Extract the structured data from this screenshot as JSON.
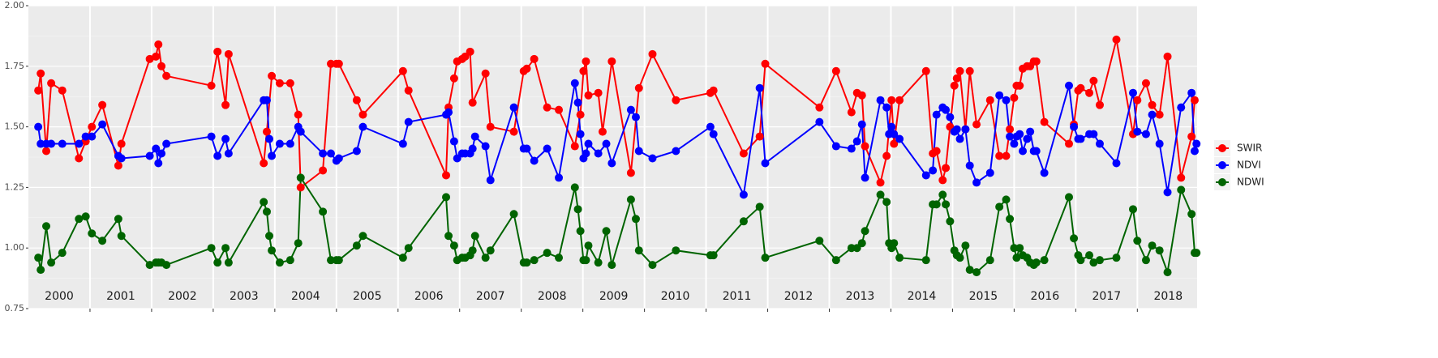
{
  "chart_data": {
    "type": "line",
    "ylim": [
      0.75,
      2.0
    ],
    "yticks": [
      0.75,
      {
        "value": 1.0,
        "label": "1.00"
      },
      1.25,
      {
        "value": 1.5,
        "label": "1.50"
      },
      1.75,
      {
        "value": 2.0,
        "label": "2.00"
      }
    ],
    "xlim": [
      2000.0,
      2018.97
    ],
    "xticks": [
      2001,
      2002,
      2003,
      2004,
      2005,
      2006,
      2007,
      2008,
      2009,
      2010,
      2011,
      2012,
      2013,
      2014,
      2015,
      2016,
      2017,
      2018
    ],
    "year_labels": [
      2000,
      2001,
      2002,
      2003,
      2004,
      2005,
      2006,
      2007,
      2008,
      2009,
      2010,
      2011,
      2012,
      2013,
      2014,
      2015,
      2016,
      2017,
      2018
    ],
    "grid": true,
    "legend": "right",
    "series": [
      {
        "name": "SWIR",
        "color": "#ff0000",
        "x": [
          2000.16,
          2000.2,
          2000.29,
          2000.37,
          2000.55,
          2000.82,
          2000.93,
          2001.03,
          2001.2,
          2001.46,
          2001.51,
          2001.97,
          2002.07,
          2002.11,
          2002.16,
          2002.24,
          2002.97,
          2003.07,
          2003.2,
          2003.25,
          2003.82,
          2003.87,
          2003.95,
          2004.08,
          2004.25,
          2004.38,
          2004.42,
          2004.78,
          2004.91,
          2005.0,
          2005.04,
          2005.33,
          2005.43,
          2006.08,
          2006.17,
          2006.78,
          2006.82,
          2006.91,
          2006.96,
          2007.04,
          2007.09,
          2007.17,
          2007.21,
          2007.42,
          2007.5,
          2007.88,
          2008.04,
          2008.09,
          2008.21,
          2008.42,
          2008.61,
          2008.87,
          2008.96,
          2009.01,
          2009.05,
          2009.09,
          2009.25,
          2009.32,
          2009.47,
          2009.78,
          2009.91,
          2010.13,
          2010.51,
          2011.07,
          2011.12,
          2011.61,
          2011.87,
          2011.96,
          2012.84,
          2013.11,
          2013.36,
          2013.45,
          2013.53,
          2013.58,
          2013.83,
          2013.93,
          2014.01,
          2014.05,
          2014.14,
          2014.57,
          2014.68,
          2014.74,
          2014.84,
          2014.89,
          2014.96,
          2015.03,
          2015.07,
          2015.12,
          2015.21,
          2015.28,
          2015.39,
          2015.61,
          2015.76,
          2015.87,
          2015.93,
          2016.0,
          2016.04,
          2016.09,
          2016.14,
          2016.21,
          2016.26,
          2016.32,
          2016.36,
          2016.49,
          2016.89,
          2016.97,
          2017.04,
          2017.08,
          2017.22,
          2017.29,
          2017.39,
          2017.66,
          2017.93,
          2018.0,
          2018.14,
          2018.24,
          2018.36,
          2018.49,
          2018.71,
          2018.88,
          2018.93
        ],
        "values": [
          1.65,
          1.72,
          1.4,
          1.68,
          1.65,
          1.37,
          1.44,
          1.5,
          1.59,
          1.34,
          1.43,
          1.78,
          1.79,
          1.84,
          1.75,
          1.71,
          1.67,
          1.81,
          1.59,
          1.8,
          1.35,
          1.48,
          1.71,
          1.68,
          1.68,
          1.55,
          1.25,
          1.32,
          1.76,
          1.76,
          1.76,
          1.61,
          1.55,
          1.73,
          1.65,
          1.3,
          1.58,
          1.7,
          1.77,
          1.78,
          1.79,
          1.81,
          1.6,
          1.72,
          1.5,
          1.48,
          1.73,
          1.74,
          1.78,
          1.58,
          1.57,
          1.42,
          1.55,
          1.73,
          1.77,
          1.63,
          1.64,
          1.48,
          1.77,
          1.31,
          1.66,
          1.8,
          1.61,
          1.64,
          1.65,
          1.39,
          1.46,
          1.76,
          1.58,
          1.73,
          1.56,
          1.64,
          1.63,
          1.42,
          1.27,
          1.38,
          1.61,
          1.43,
          1.61,
          1.73,
          1.39,
          1.4,
          1.28,
          1.33,
          1.5,
          1.67,
          1.7,
          1.73,
          1.49,
          1.73,
          1.51,
          1.61,
          1.38,
          1.38,
          1.49,
          1.62,
          1.67,
          1.67,
          1.74,
          1.75,
          1.75,
          1.77,
          1.77,
          1.52,
          1.43,
          1.51,
          1.65,
          1.66,
          1.64,
          1.69,
          1.59,
          1.86,
          1.47,
          1.61,
          1.68,
          1.59,
          1.55,
          1.79,
          1.29,
          1.46,
          1.61
        ]
      },
      {
        "name": "NDVI",
        "color": "#0000ff",
        "x": [
          2000.16,
          2000.2,
          2000.29,
          2000.37,
          2000.55,
          2000.82,
          2000.93,
          2001.03,
          2001.2,
          2001.46,
          2001.51,
          2001.97,
          2002.07,
          2002.11,
          2002.16,
          2002.24,
          2002.97,
          2003.07,
          2003.2,
          2003.25,
          2003.82,
          2003.87,
          2003.91,
          2003.95,
          2004.08,
          2004.25,
          2004.38,
          2004.42,
          2004.78,
          2004.91,
          2005.0,
          2005.04,
          2005.33,
          2005.43,
          2006.08,
          2006.17,
          2006.78,
          2006.82,
          2006.91,
          2006.96,
          2007.04,
          2007.09,
          2007.17,
          2007.21,
          2007.25,
          2007.42,
          2007.5,
          2007.88,
          2008.04,
          2008.09,
          2008.21,
          2008.42,
          2008.61,
          2008.87,
          2008.92,
          2008.96,
          2009.01,
          2009.05,
          2009.09,
          2009.25,
          2009.38,
          2009.47,
          2009.78,
          2009.86,
          2009.91,
          2010.13,
          2010.51,
          2011.07,
          2011.12,
          2011.61,
          2011.87,
          2011.96,
          2012.84,
          2013.11,
          2013.36,
          2013.45,
          2013.53,
          2013.58,
          2013.83,
          2013.93,
          2013.97,
          2014.01,
          2014.05,
          2014.14,
          2014.57,
          2014.68,
          2014.74,
          2014.84,
          2014.89,
          2014.96,
          2015.03,
          2015.07,
          2015.12,
          2015.21,
          2015.28,
          2015.39,
          2015.61,
          2015.76,
          2015.87,
          2015.93,
          2016.0,
          2016.04,
          2016.09,
          2016.14,
          2016.21,
          2016.26,
          2016.32,
          2016.36,
          2016.49,
          2016.89,
          2016.97,
          2017.04,
          2017.08,
          2017.22,
          2017.29,
          2017.39,
          2017.66,
          2017.93,
          2018.0,
          2018.14,
          2018.24,
          2018.36,
          2018.49,
          2018.71,
          2018.88,
          2018.93,
          2018.96
        ],
        "values": [
          1.5,
          1.43,
          1.43,
          1.43,
          1.43,
          1.43,
          1.46,
          1.46,
          1.51,
          1.38,
          1.37,
          1.38,
          1.41,
          1.35,
          1.39,
          1.43,
          1.46,
          1.38,
          1.45,
          1.39,
          1.61,
          1.61,
          1.45,
          1.38,
          1.43,
          1.43,
          1.5,
          1.48,
          1.39,
          1.39,
          1.36,
          1.37,
          1.4,
          1.5,
          1.43,
          1.52,
          1.55,
          1.56,
          1.44,
          1.37,
          1.39,
          1.39,
          1.39,
          1.41,
          1.46,
          1.42,
          1.28,
          1.58,
          1.41,
          1.41,
          1.36,
          1.41,
          1.29,
          1.68,
          1.6,
          1.47,
          1.37,
          1.39,
          1.43,
          1.39,
          1.43,
          1.35,
          1.57,
          1.54,
          1.4,
          1.37,
          1.4,
          1.5,
          1.47,
          1.22,
          1.66,
          1.35,
          1.52,
          1.42,
          1.41,
          1.44,
          1.51,
          1.29,
          1.61,
          1.58,
          1.47,
          1.5,
          1.47,
          1.45,
          1.3,
          1.32,
          1.55,
          1.58,
          1.57,
          1.54,
          1.48,
          1.49,
          1.45,
          1.49,
          1.34,
          1.27,
          1.31,
          1.63,
          1.61,
          1.46,
          1.43,
          1.46,
          1.47,
          1.4,
          1.45,
          1.48,
          1.4,
          1.4,
          1.31,
          1.67,
          1.5,
          1.45,
          1.45,
          1.47,
          1.47,
          1.43,
          1.35,
          1.64,
          1.48,
          1.47,
          1.55,
          1.43,
          1.23,
          1.58,
          1.64,
          1.4,
          1.43
        ]
      },
      {
        "name": "NDWI",
        "color": "#006400",
        "x": [
          2000.16,
          2000.2,
          2000.29,
          2000.37,
          2000.55,
          2000.82,
          2000.93,
          2001.03,
          2001.2,
          2001.46,
          2001.51,
          2001.97,
          2002.07,
          2002.11,
          2002.16,
          2002.24,
          2002.97,
          2003.07,
          2003.2,
          2003.25,
          2003.82,
          2003.87,
          2003.91,
          2003.95,
          2004.08,
          2004.25,
          2004.38,
          2004.42,
          2004.78,
          2004.91,
          2005.0,
          2005.04,
          2005.33,
          2005.43,
          2006.08,
          2006.17,
          2006.78,
          2006.82,
          2006.91,
          2006.96,
          2007.04,
          2007.09,
          2007.17,
          2007.21,
          2007.25,
          2007.42,
          2007.5,
          2007.88,
          2008.04,
          2008.09,
          2008.21,
          2008.42,
          2008.61,
          2008.87,
          2008.92,
          2008.96,
          2009.01,
          2009.05,
          2009.09,
          2009.25,
          2009.38,
          2009.47,
          2009.78,
          2009.86,
          2009.91,
          2010.13,
          2010.51,
          2011.07,
          2011.12,
          2011.61,
          2011.87,
          2011.96,
          2012.84,
          2013.11,
          2013.36,
          2013.45,
          2013.53,
          2013.58,
          2013.83,
          2013.93,
          2013.97,
          2014.01,
          2014.05,
          2014.14,
          2014.57,
          2014.68,
          2014.74,
          2014.84,
          2014.89,
          2014.96,
          2015.03,
          2015.07,
          2015.12,
          2015.21,
          2015.28,
          2015.39,
          2015.61,
          2015.76,
          2015.87,
          2015.93,
          2016.0,
          2016.04,
          2016.09,
          2016.14,
          2016.21,
          2016.26,
          2016.32,
          2016.36,
          2016.49,
          2016.89,
          2016.97,
          2017.04,
          2017.08,
          2017.22,
          2017.29,
          2017.39,
          2017.66,
          2017.93,
          2018.0,
          2018.14,
          2018.24,
          2018.36,
          2018.49,
          2018.71,
          2018.88,
          2018.93,
          2018.96
        ],
        "values": [
          0.96,
          0.91,
          1.09,
          0.94,
          0.98,
          1.12,
          1.13,
          1.06,
          1.03,
          1.12,
          1.05,
          0.93,
          0.94,
          0.94,
          0.94,
          0.93,
          1.0,
          0.94,
          1.0,
          0.94,
          1.19,
          1.15,
          1.05,
          0.99,
          0.94,
          0.95,
          1.02,
          1.29,
          1.15,
          0.95,
          0.95,
          0.95,
          1.01,
          1.05,
          0.96,
          1.0,
          1.21,
          1.05,
          1.01,
          0.95,
          0.96,
          0.96,
          0.97,
          0.99,
          1.05,
          0.96,
          0.99,
          1.14,
          0.94,
          0.94,
          0.95,
          0.98,
          0.96,
          1.25,
          1.16,
          1.07,
          0.95,
          0.95,
          1.01,
          0.94,
          1.07,
          0.93,
          1.2,
          1.12,
          0.99,
          0.93,
          0.99,
          0.97,
          0.97,
          1.11,
          1.17,
          0.96,
          1.03,
          0.95,
          1.0,
          1.0,
          1.02,
          1.07,
          1.22,
          1.19,
          1.02,
          1.0,
          1.02,
          0.96,
          0.95,
          1.18,
          1.18,
          1.22,
          1.18,
          1.11,
          0.99,
          0.97,
          0.96,
          1.01,
          0.91,
          0.9,
          0.95,
          1.17,
          1.2,
          1.12,
          1.0,
          0.96,
          1.0,
          0.97,
          0.96,
          0.94,
          0.93,
          0.94,
          0.95,
          1.21,
          1.04,
          0.97,
          0.95,
          0.97,
          0.94,
          0.95,
          0.96,
          1.16,
          1.03,
          0.95,
          1.01,
          0.99,
          0.9,
          1.24,
          1.14,
          0.98,
          0.98
        ]
      }
    ]
  }
}
